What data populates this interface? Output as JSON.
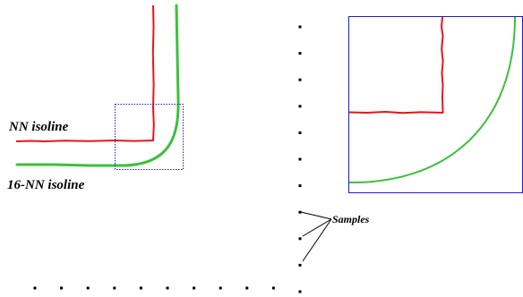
{
  "labels": {
    "nn_isoline": "NN isoline",
    "knn_isoline": "16-NN isoline",
    "samples": "Samples"
  },
  "colors": {
    "nn_isoline": "#e8141c",
    "knn_isoline": "#3cc03c",
    "zoom_box": "#1c1cc8",
    "samples": "#000000",
    "text": "#000000"
  }
}
